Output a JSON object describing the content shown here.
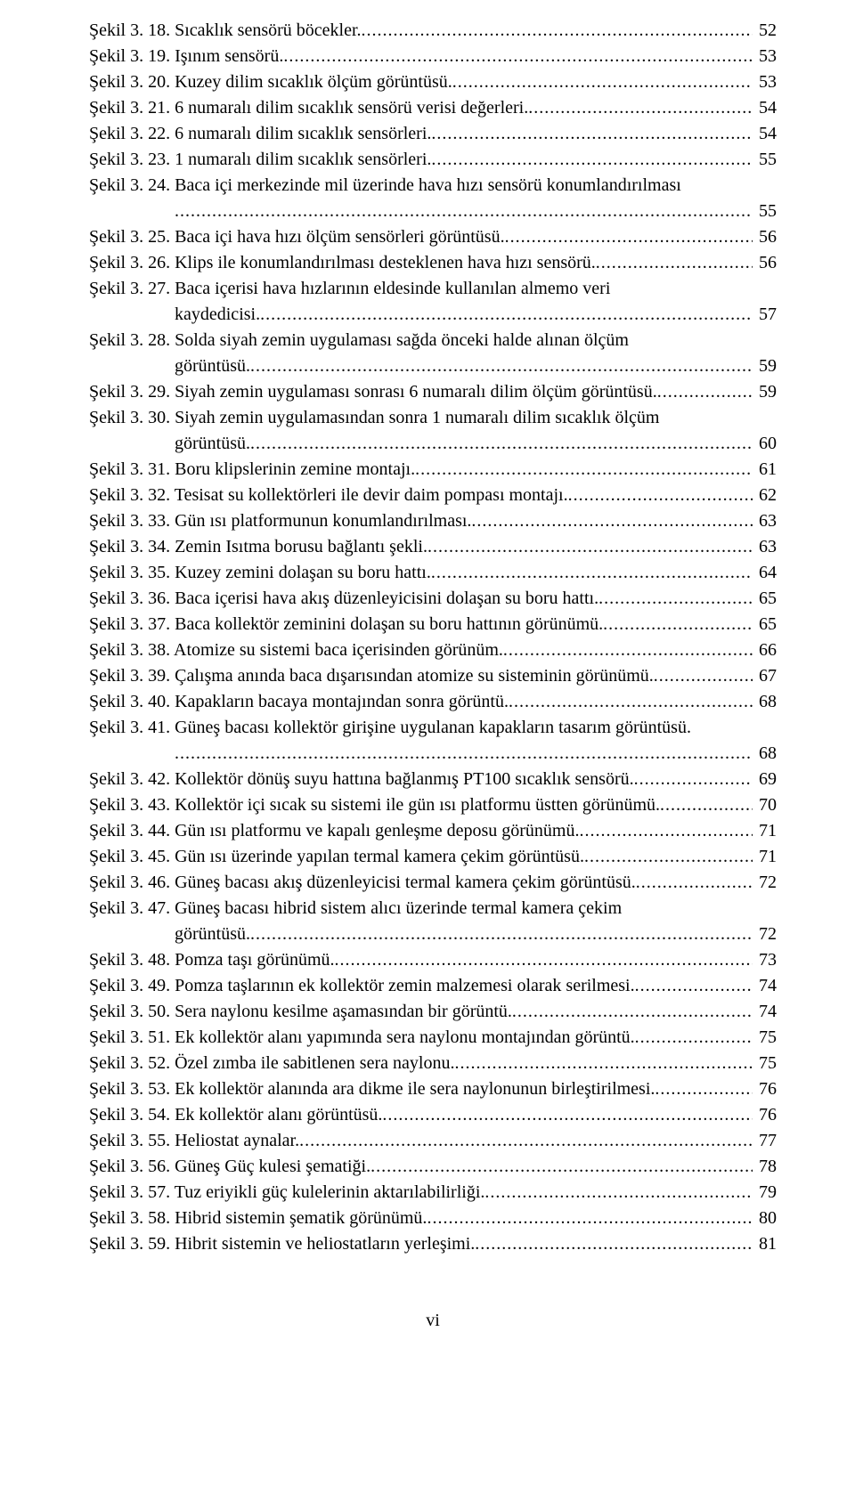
{
  "font": {
    "family": "Times New Roman",
    "size_pt": 15,
    "color": "#000000"
  },
  "page_bg": "#ffffff",
  "leader_char": ".",
  "footer": "vi",
  "entries": [
    {
      "label": "Şekil 3. 18. Sıcaklık sensörü böcekler.",
      "page": "52"
    },
    {
      "label": "Şekil 3. 19. Işınım sensörü.",
      "page": "53"
    },
    {
      "label": "Şekil 3. 20. Kuzey dilim sıcaklık ölçüm görüntüsü.",
      "page": "53"
    },
    {
      "label": "Şekil 3. 21. 6 numaralı dilim sıcaklık sensörü verisi değerleri.",
      "page": "54"
    },
    {
      "label": "Şekil 3. 22. 6 numaralı dilim sıcaklık sensörleri.",
      "page": "54"
    },
    {
      "label": "Şekil 3. 23. 1 numaralı dilim sıcaklık sensörleri.",
      "page": "55"
    },
    {
      "label": "Şekil 3. 24. Baca içi merkezinde mil üzerinde hava hızı sensörü konumlandırılması",
      "page": "55",
      "wrap": true,
      "cont_label": ""
    },
    {
      "label": "Şekil 3. 25. Baca içi hava hızı ölçüm sensörleri görüntüsü.",
      "page": "56"
    },
    {
      "label": "Şekil 3. 26. Klips ile konumlandırılması desteklenen hava hızı sensörü.",
      "page": "56"
    },
    {
      "label": "Şekil 3. 27. Baca içerisi hava hızlarının eldesinde kullanılan almemo veri",
      "cont_label": "kaydedicisi.",
      "page": "57",
      "wrap": true
    },
    {
      "label": "Şekil 3. 28. Solda siyah zemin uygulaması sağda önceki halde alınan ölçüm",
      "cont_label": "görüntüsü.",
      "page": "59",
      "wrap": true
    },
    {
      "label": "Şekil 3. 29. Siyah zemin uygulaması sonrası 6 numaralı dilim ölçüm görüntüsü.",
      "page": "59"
    },
    {
      "label": "Şekil 3. 30. Siyah zemin uygulamasından sonra 1 numaralı dilim sıcaklık ölçüm",
      "cont_label": "görüntüsü.",
      "page": "60",
      "wrap": true
    },
    {
      "label": "Şekil 3. 31. Boru klipslerinin zemine montajı.",
      "page": "61"
    },
    {
      "label": "Şekil 3. 32. Tesisat su kollektörleri ile devir daim pompası montajı.",
      "page": "62"
    },
    {
      "label": "Şekil 3. 33. Gün ısı platformunun konumlandırılması.",
      "page": "63"
    },
    {
      "label": "Şekil 3. 34. Zemin Isıtma borusu bağlantı şekli.",
      "page": "63"
    },
    {
      "label": "Şekil 3. 35. Kuzey zemini dolaşan su boru hattı.",
      "page": "64"
    },
    {
      "label": "Şekil 3. 36. Baca içerisi hava akış düzenleyicisini dolaşan su boru hattı.",
      "page": "65"
    },
    {
      "label": "Şekil 3. 37. Baca kollektör zeminini dolaşan su boru hattının görünümü.",
      "page": "65"
    },
    {
      "label": "Şekil 3. 38. Atomize su sistemi baca içerisinden görünüm.",
      "page": "66"
    },
    {
      "label": "Şekil 3. 39. Çalışma anında baca dışarısından atomize su sisteminin görünümü.",
      "page": "67"
    },
    {
      "label": "Şekil 3. 40. Kapakların bacaya montajından sonra görüntü.",
      "page": "68"
    },
    {
      "label": "Şekil 3. 41. Güneş bacası kollektör girişine uygulanan kapakların tasarım görüntüsü.",
      "cont_label": "",
      "page": "68",
      "wrap": true
    },
    {
      "label": "Şekil 3. 42. Kollektör dönüş suyu hattına bağlanmış PT100 sıcaklık sensörü.",
      "page": "69"
    },
    {
      "label": "Şekil 3. 43. Kollektör içi sıcak su sistemi ile gün ısı platformu üstten görünümü.",
      "page": "70"
    },
    {
      "label": "Şekil 3. 44. Gün ısı platformu ve kapalı genleşme deposu görünümü.",
      "page": "71"
    },
    {
      "label": "Şekil 3. 45. Gün ısı üzerinde yapılan termal kamera çekim görüntüsü.",
      "page": "71"
    },
    {
      "label": "Şekil 3. 46. Güneş bacası akış düzenleyicisi termal kamera çekim görüntüsü.",
      "page": "72"
    },
    {
      "label": "Şekil 3. 47. Güneş bacası hibrid sistem alıcı üzerinde termal kamera çekim",
      "cont_label": "görüntüsü.",
      "page": "72",
      "wrap": true
    },
    {
      "label": "Şekil 3. 48. Pomza taşı görünümü.",
      "page": "73"
    },
    {
      "label": "Şekil 3. 49. Pomza taşlarının ek kollektör zemin malzemesi olarak serilmesi.",
      "page": "74"
    },
    {
      "label": "Şekil 3. 50. Sera naylonu kesilme aşamasından bir görüntü.",
      "page": "74"
    },
    {
      "label": "Şekil 3. 51. Ek kollektör alanı yapımında sera naylonu montajından görüntü.",
      "page": "75"
    },
    {
      "label": "Şekil 3. 52. Özel zımba ile sabitlenen sera naylonu.",
      "page": "75"
    },
    {
      "label": "Şekil 3. 53. Ek kollektör alanında ara dikme ile sera naylonunun birleştirilmesi.",
      "page": "76"
    },
    {
      "label": "Şekil 3. 54. Ek kollektör alanı görüntüsü.",
      "page": "76"
    },
    {
      "label": "Şekil 3. 55. Heliostat aynalar.",
      "page": "77"
    },
    {
      "label": "Şekil 3. 56. Güneş Güç kulesi şematiği.",
      "page": "78"
    },
    {
      "label": "Şekil 3. 57. Tuz eriyikli güç kulelerinin aktarılabilirliği.",
      "page": "79"
    },
    {
      "label": "Şekil 3. 58. Hibrid sistemin şematik görünümü.",
      "page": "80"
    },
    {
      "label": "Şekil 3. 59. Hibrit sistemin ve heliostatların yerleşimi.",
      "page": "81"
    }
  ]
}
